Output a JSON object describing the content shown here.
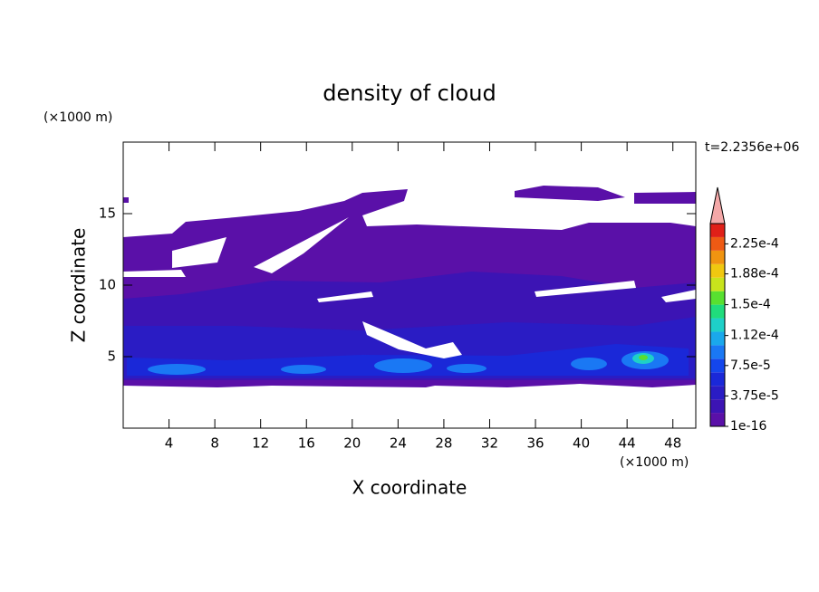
{
  "chart_data": {
    "type": "contour",
    "title": "density of cloud",
    "x_label": "X coordinate",
    "y_label": "Z coordinate",
    "x_unit": "(×1000 m)",
    "y_unit": "(×1000 m)",
    "annotation": "t=2.2356e+06",
    "xlim": [
      0,
      50
    ],
    "ylim": [
      0,
      20
    ],
    "xticks": [
      4,
      8,
      12,
      16,
      20,
      24,
      28,
      32,
      36,
      40,
      44,
      48
    ],
    "yticks": [
      5,
      10,
      15
    ],
    "colorbar": {
      "lim": [
        1e-16,
        0.00025
      ],
      "colors": [
        "#5a10a8",
        "#3c14b4",
        "#2a1cc4",
        "#1a28d8",
        "#1446ec",
        "#1a78f4",
        "#1aa8ec",
        "#1ed0c8",
        "#20dc7c",
        "#58e030",
        "#c8e41c",
        "#f0c810",
        "#f09410",
        "#ee5a14",
        "#e02018"
      ],
      "extend_color": "#f4a8a8",
      "ticks": [
        {
          "value": 1e-16,
          "label": "1e-16"
        },
        {
          "value": 3.75e-05,
          "label": "3.75e-5"
        },
        {
          "value": 7.5e-05,
          "label": "7.5e-5"
        },
        {
          "value": 0.000112,
          "label": "1.12e-4"
        },
        {
          "value": 0.00015,
          "label": "1.5e-4"
        },
        {
          "value": 0.000188,
          "label": "1.88e-4"
        },
        {
          "value": 0.000225,
          "label": "2.25e-4"
        }
      ]
    }
  }
}
